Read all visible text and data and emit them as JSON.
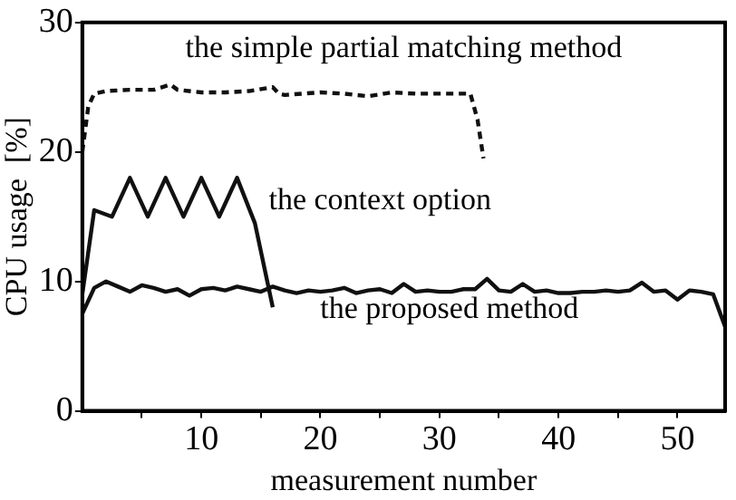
{
  "chart_data": {
    "type": "line",
    "xlabel": "measurement number",
    "ylabel": "CPU usage  [%]",
    "xlim": [
      0,
      54
    ],
    "ylim": [
      0,
      30
    ],
    "xticks": [
      {
        "value": 5,
        "label": null
      },
      10,
      {
        "value": 15,
        "label": null
      },
      20,
      {
        "value": 25,
        "label": null
      },
      30,
      {
        "value": 35,
        "label": null
      },
      40,
      {
        "value": 45,
        "label": null
      },
      50
    ],
    "yticks": [
      0,
      10,
      20,
      30
    ],
    "grid": false,
    "legend": false,
    "marker": "none",
    "series": [
      {
        "name": "the simple partial matching method",
        "color": "#111111",
        "line_style": "dashed",
        "x": [
          0,
          0.5,
          1,
          2,
          4,
          6,
          7.4,
          8,
          10,
          12,
          14,
          16,
          16.5,
          17,
          20,
          22,
          24,
          26,
          28,
          30,
          32.6,
          33.2,
          33.7
        ],
        "values": [
          20,
          23.5,
          24.5,
          24.7,
          24.8,
          24.8,
          25.2,
          24.8,
          24.6,
          24.6,
          24.7,
          25,
          24.5,
          24.4,
          24.6,
          24.5,
          24.3,
          24.6,
          24.5,
          24.5,
          24.5,
          22.5,
          19.5
        ]
      },
      {
        "name": "the context option",
        "color": "#111111",
        "x": [
          0,
          1,
          2.5,
          4,
          5.5,
          7,
          8.5,
          10,
          11.5,
          13,
          14.5,
          16
        ],
        "values": [
          9,
          15.5,
          15,
          18,
          15,
          18,
          15,
          18,
          15,
          18,
          14.5,
          8
        ]
      },
      {
        "name": "the proposed method",
        "color": "#111111",
        "x": [
          0,
          1,
          2,
          3,
          4,
          5,
          6,
          7,
          8,
          9,
          10,
          11,
          12,
          13,
          14,
          15,
          16,
          17,
          18,
          19,
          20,
          21,
          22,
          23,
          24,
          25,
          26,
          27,
          28,
          29,
          30,
          31,
          32,
          33,
          34,
          35,
          36,
          37,
          38,
          39,
          40,
          41,
          42,
          43,
          44,
          45,
          46,
          47,
          48,
          49,
          50,
          51,
          52,
          53,
          54
        ],
        "values": [
          7.5,
          9.5,
          10,
          9.6,
          9.2,
          9.7,
          9.5,
          9.2,
          9.4,
          8.9,
          9.4,
          9.5,
          9.3,
          9.6,
          9.4,
          9.2,
          9.6,
          9.3,
          9.1,
          9.3,
          9.2,
          9.3,
          9.5,
          9.1,
          9.3,
          9.4,
          9.1,
          9.8,
          9.2,
          9.3,
          9.2,
          9.2,
          9.4,
          9.4,
          10.2,
          9.3,
          9.2,
          9.8,
          9.2,
          9.3,
          9.1,
          9.1,
          9.2,
          9.2,
          9.3,
          9.2,
          9.3,
          9.9,
          9.2,
          9.3,
          8.6,
          9.3,
          9.2,
          9,
          6.5
        ]
      }
    ]
  }
}
